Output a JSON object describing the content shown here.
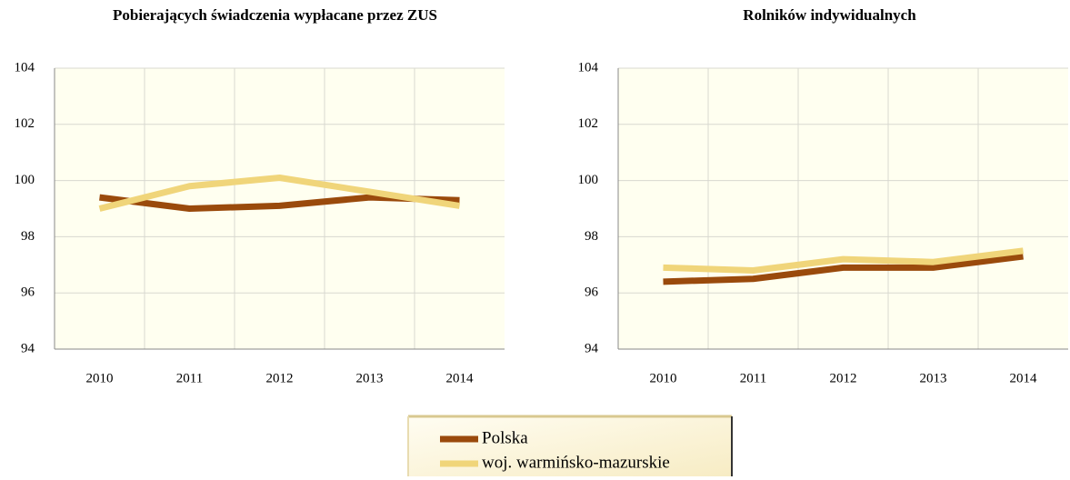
{
  "chart_data": [
    {
      "type": "line",
      "title": "Pobierających świadczenia wypłacane przez ZUS",
      "categories": [
        "2010",
        "2011",
        "2012",
        "2013",
        "2014"
      ],
      "series": [
        {
          "values": [
            99.4,
            99.0,
            99.1,
            99.4,
            99.3
          ]
        },
        {
          "values": [
            99.0,
            99.8,
            100.1,
            99.6,
            99.1
          ]
        }
      ],
      "ylim": [
        94,
        104
      ],
      "yticks": [
        94,
        96,
        98,
        100,
        102,
        104
      ],
      "grid": true
    },
    {
      "type": "line",
      "title": "Rolników indywidualnych",
      "categories": [
        "2010",
        "2011",
        "2012",
        "2013",
        "2014"
      ],
      "series": [
        {
          "values": [
            96.4,
            96.5,
            96.9,
            96.9,
            97.3
          ]
        },
        {
          "values": [
            96.9,
            96.8,
            97.2,
            97.1,
            97.5
          ]
        }
      ],
      "ylim": [
        94,
        104
      ],
      "yticks": [
        94,
        96,
        98,
        100,
        102,
        104
      ],
      "grid": true
    }
  ],
  "legend": {
    "series": [
      {
        "name": "Polska",
        "color": "#9a4a0c"
      },
      {
        "name": "woj. warmińsko-mazurskie",
        "color": "#f0d57a"
      }
    ]
  }
}
